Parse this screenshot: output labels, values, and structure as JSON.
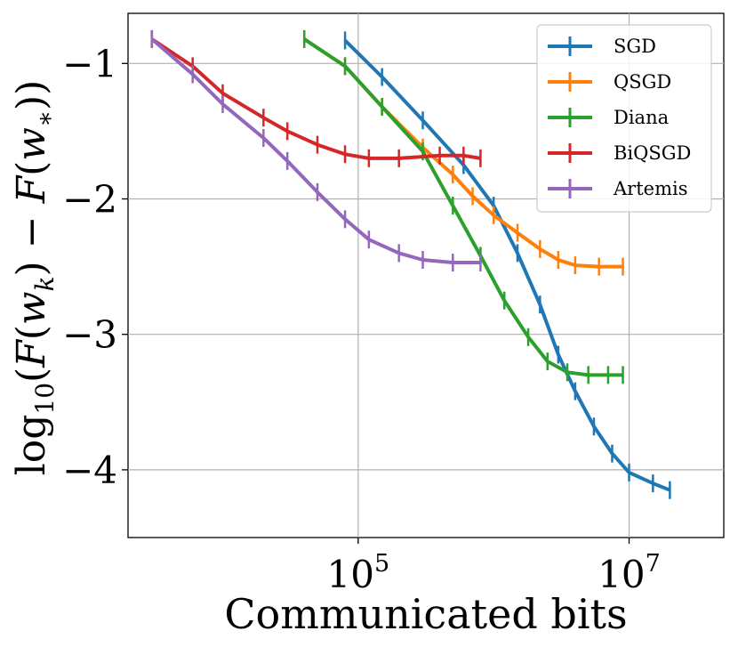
{
  "chart_data": {
    "type": "line",
    "title": "",
    "xlabel": "Communicated bits",
    "ylabel": "log10(F(w_k) − F(w_*))",
    "xscale": "log",
    "x_tick_labels": [
      "10^5",
      "10^7"
    ],
    "x_ticks": [
      100000,
      10000000
    ],
    "xlim": [
      2000,
      50000000
    ],
    "ylim": [
      -4.5,
      -0.63
    ],
    "y_ticks": [
      -4,
      -3,
      -2,
      -1
    ],
    "y_tick_labels": [
      "−4",
      "−3",
      "−2",
      "−1"
    ],
    "grid": true,
    "legend_position": "top-right",
    "series": [
      {
        "name": "SGD",
        "color": "#1f77b4",
        "points": [
          [
            80000,
            -0.83
          ],
          [
            150000,
            -1.1
          ],
          [
            300000,
            -1.42
          ],
          [
            600000,
            -1.75
          ],
          [
            1000000,
            -2.05
          ],
          [
            1500000,
            -2.4
          ],
          [
            2200000,
            -2.78
          ],
          [
            3000000,
            -3.15
          ],
          [
            4000000,
            -3.42
          ],
          [
            5500000,
            -3.68
          ],
          [
            7500000,
            -3.88
          ],
          [
            10000000,
            -4.02
          ],
          [
            15000000,
            -4.1
          ],
          [
            20000000,
            -4.15
          ]
        ]
      },
      {
        "name": "QSGD",
        "color": "#ff7f0e",
        "points": [
          [
            40000,
            -0.82
          ],
          [
            80000,
            -1.02
          ],
          [
            150000,
            -1.32
          ],
          [
            300000,
            -1.62
          ],
          [
            500000,
            -1.82
          ],
          [
            700000,
            -1.98
          ],
          [
            1000000,
            -2.12
          ],
          [
            1500000,
            -2.25
          ],
          [
            2200000,
            -2.37
          ],
          [
            3000000,
            -2.45
          ],
          [
            4000000,
            -2.49
          ],
          [
            6000000,
            -2.5
          ],
          [
            9000000,
            -2.5
          ]
        ]
      },
      {
        "name": "Diana",
        "color": "#2ca02c",
        "points": [
          [
            40000,
            -0.82
          ],
          [
            80000,
            -1.02
          ],
          [
            150000,
            -1.32
          ],
          [
            300000,
            -1.65
          ],
          [
            500000,
            -2.05
          ],
          [
            800000,
            -2.42
          ],
          [
            1200000,
            -2.75
          ],
          [
            1800000,
            -3.02
          ],
          [
            2500000,
            -3.2
          ],
          [
            3500000,
            -3.28
          ],
          [
            5000000,
            -3.3
          ],
          [
            7000000,
            -3.3
          ],
          [
            9000000,
            -3.3
          ]
        ]
      },
      {
        "name": "BiQSGD",
        "color": "#d62728",
        "points": [
          [
            3000,
            -0.82
          ],
          [
            6000,
            -1.02
          ],
          [
            10000,
            -1.22
          ],
          [
            20000,
            -1.4
          ],
          [
            30000,
            -1.5
          ],
          [
            50000,
            -1.6
          ],
          [
            80000,
            -1.67
          ],
          [
            120000,
            -1.7
          ],
          [
            200000,
            -1.7
          ],
          [
            400000,
            -1.68
          ],
          [
            600000,
            -1.68
          ],
          [
            800000,
            -1.7
          ]
        ]
      },
      {
        "name": "Artemis",
        "color": "#9467bd",
        "points": [
          [
            3000,
            -0.82
          ],
          [
            6000,
            -1.08
          ],
          [
            10000,
            -1.3
          ],
          [
            20000,
            -1.55
          ],
          [
            30000,
            -1.72
          ],
          [
            50000,
            -1.95
          ],
          [
            80000,
            -2.15
          ],
          [
            120000,
            -2.3
          ],
          [
            200000,
            -2.4
          ],
          [
            300000,
            -2.45
          ],
          [
            500000,
            -2.47
          ],
          [
            800000,
            -2.47
          ]
        ]
      }
    ]
  }
}
